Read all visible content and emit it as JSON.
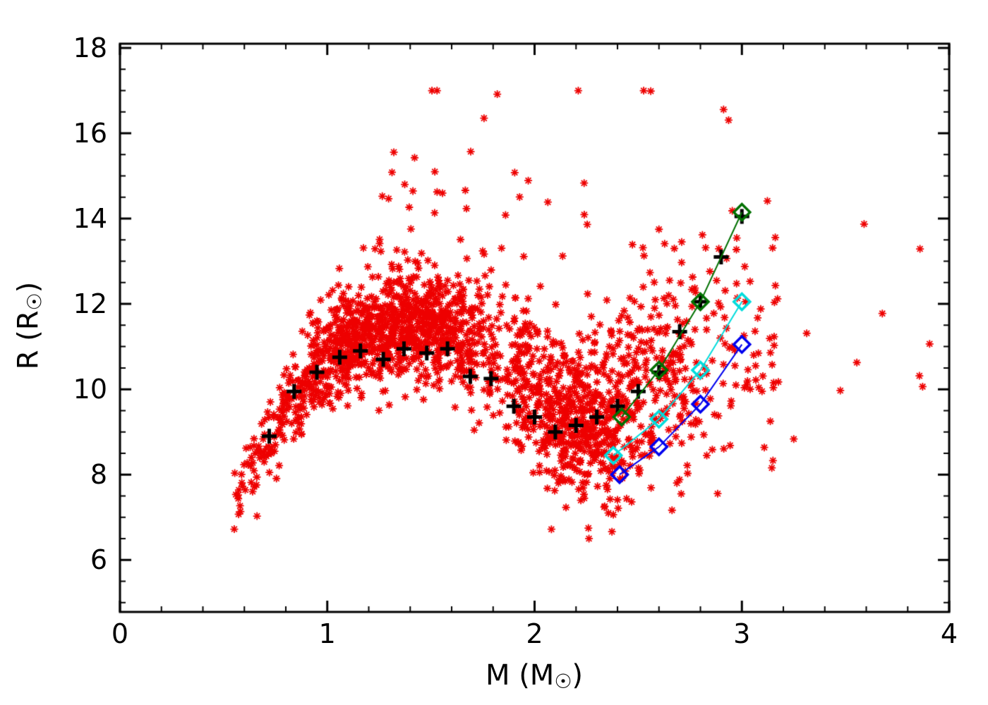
{
  "figure": {
    "background": "#ffffff"
  },
  "chart_data": {
    "type": "scatter",
    "title": "",
    "xlabel": "M (M☉)",
    "ylabel": "R (R☉)",
    "xlabel_parts": {
      "prefix": "M (M",
      "sun": "☉",
      "suffix": ")"
    },
    "ylabel_parts": {
      "prefix": "R (R",
      "sun": "☉",
      "suffix": ")"
    },
    "xlim": [
      0,
      4
    ],
    "ylim": [
      4.78,
      18.1
    ],
    "x_ticks": [
      0,
      1,
      2,
      3,
      4
    ],
    "x_tick_labels": [
      "0",
      "1",
      "2",
      "3",
      "4"
    ],
    "y_ticks": [
      6,
      8,
      10,
      12,
      14,
      16,
      18
    ],
    "y_tick_labels": [
      "6",
      "8",
      "10",
      "12",
      "14",
      "16",
      "18"
    ],
    "x_minor_step": 0.2,
    "y_minor_step": 0.5,
    "grid": false,
    "legend": "none",
    "axis_color": "#000000",
    "series": [
      {
        "name": "observed-stars",
        "type": "scatter-generated",
        "marker": "asterisk",
        "color": "#ee0000",
        "generator": {
          "seed": 20240,
          "count": 2100,
          "mass_components": [
            {
              "dist": "gauss",
              "mean": 1.32,
              "sigma": 0.4,
              "min": 0.53,
              "max": 2.15,
              "weight": 0.585
            },
            {
              "dist": "gauss",
              "mean": 2.25,
              "sigma": 0.28,
              "min": 1.9,
              "max": 3.1,
              "weight": 0.305
            },
            {
              "dist": "uniform",
              "min": 2.05,
              "max": 3.18,
              "weight": 0.104
            },
            {
              "dist": "uniform",
              "min": 3.15,
              "max": 3.95,
              "weight": 0.006
            }
          ],
          "ridge": [
            [
              0.53,
              7.3
            ],
            [
              0.62,
              8.0
            ],
            [
              0.72,
              8.9
            ],
            [
              0.85,
              9.9
            ],
            [
              1.0,
              10.8
            ],
            [
              1.15,
              11.2
            ],
            [
              1.35,
              11.5
            ],
            [
              1.6,
              11.4
            ],
            [
              1.75,
              11.0
            ],
            [
              1.9,
              10.4
            ],
            [
              2.05,
              9.6
            ],
            [
              2.2,
              9.2
            ],
            [
              2.35,
              9.4
            ],
            [
              2.6,
              10.1
            ],
            [
              2.9,
              10.9
            ],
            [
              3.2,
              11.6
            ],
            [
              3.95,
              13.3
            ]
          ],
          "sigma": [
            [
              0.53,
              0.35
            ],
            [
              0.8,
              0.5
            ],
            [
              1.0,
              0.6
            ],
            [
              1.5,
              0.65
            ],
            [
              1.8,
              0.75
            ],
            [
              2.0,
              0.85
            ],
            [
              2.2,
              0.85
            ],
            [
              2.5,
              1.25
            ],
            [
              2.8,
              1.45
            ],
            [
              3.2,
              1.5
            ],
            [
              3.95,
              1.5
            ]
          ],
          "upper_tail": {
            "prob": 0.1,
            "scale": 1.7,
            "mass_min": 1.15
          },
          "r_min": 6.5,
          "r_max": 17.0
        }
      },
      {
        "name": "binned-median-track",
        "type": "scatter",
        "marker": "plus",
        "color": "#000000",
        "points": [
          [
            0.72,
            8.9
          ],
          [
            0.84,
            9.95
          ],
          [
            0.95,
            10.4
          ],
          [
            1.06,
            10.75
          ],
          [
            1.16,
            10.9
          ],
          [
            1.27,
            10.7
          ],
          [
            1.37,
            10.95
          ],
          [
            1.48,
            10.85
          ],
          [
            1.58,
            10.95
          ],
          [
            1.69,
            10.3
          ],
          [
            1.79,
            10.25
          ],
          [
            1.9,
            9.6
          ],
          [
            2.0,
            9.35
          ],
          [
            2.1,
            9.0
          ],
          [
            2.2,
            9.15
          ],
          [
            2.3,
            9.35
          ],
          [
            2.4,
            9.6
          ],
          [
            2.5,
            9.95
          ],
          [
            2.6,
            10.4
          ],
          [
            2.7,
            11.35
          ],
          [
            2.8,
            12.05
          ],
          [
            2.9,
            13.1
          ],
          [
            3.0,
            14.05
          ]
        ]
      },
      {
        "name": "model-track-green",
        "type": "line-markers",
        "marker": "diamond",
        "color": "#007000",
        "points": [
          [
            2.42,
            9.35
          ],
          [
            2.6,
            10.45
          ],
          [
            2.8,
            12.05
          ],
          [
            3.0,
            14.15
          ]
        ]
      },
      {
        "name": "model-track-cyan",
        "type": "line-markers",
        "marker": "diamond",
        "color": "#00dcdc",
        "points": [
          [
            2.38,
            8.45
          ],
          [
            2.6,
            9.3
          ],
          [
            2.8,
            10.45
          ],
          [
            3.0,
            12.05
          ]
        ]
      },
      {
        "name": "model-track-blue",
        "type": "line-markers",
        "marker": "diamond",
        "color": "#0000ee",
        "points": [
          [
            2.41,
            8.0
          ],
          [
            2.6,
            8.65
          ],
          [
            2.8,
            9.65
          ],
          [
            3.0,
            11.05
          ]
        ]
      }
    ]
  }
}
